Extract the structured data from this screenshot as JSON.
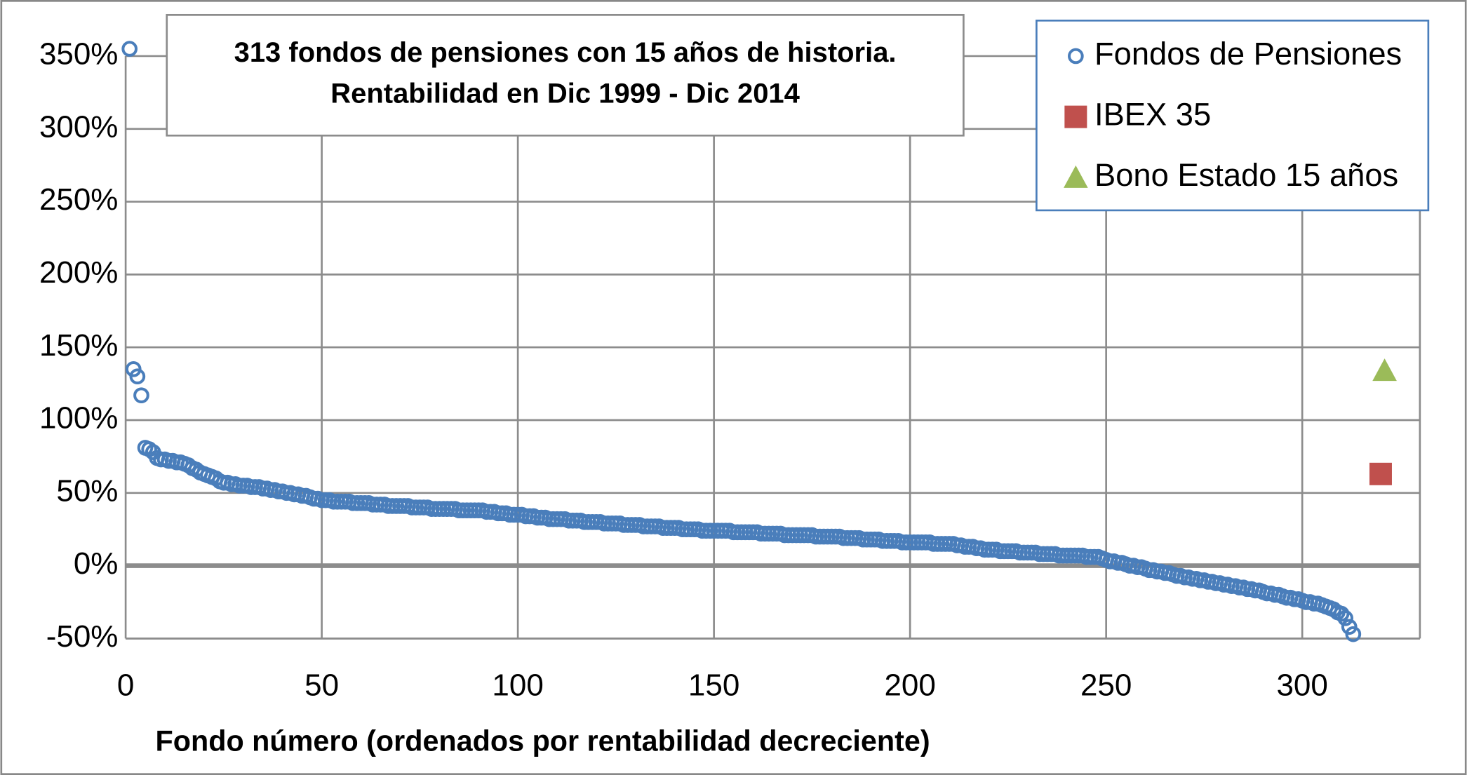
{
  "chart_data": {
    "type": "scatter",
    "title": [
      "313 fondos de pensiones con 15 años de historia.",
      "Rentabilidad en Dic 1999 - Dic 2014"
    ],
    "x_label": "Fondo número  (ordenados por rentabilidad decreciente)",
    "xlim": [
      0,
      330
    ],
    "xticks": [
      0,
      50,
      100,
      150,
      200,
      250,
      300
    ],
    "ylim": [
      -50,
      350
    ],
    "yticks": [
      {
        "value": -50,
        "label": "-50%"
      },
      {
        "value": 0,
        "label": "0%"
      },
      {
        "value": 50,
        "label": "50%"
      },
      {
        "value": 100,
        "label": "100%"
      },
      {
        "value": 150,
        "label": "150%"
      },
      {
        "value": 200,
        "label": "200%"
      },
      {
        "value": 250,
        "label": "250%"
      },
      {
        "value": 300,
        "label": "300%"
      },
      {
        "value": 350,
        "label": "350%"
      }
    ],
    "grid": true,
    "legend": "top-right",
    "series": [
      {
        "name": "Fondos de Pensiones",
        "color": "#4a7ebb",
        "marker": "circle",
        "x": [
          1,
          2,
          3,
          4,
          5,
          6,
          7,
          8,
          9,
          10,
          11,
          12,
          13,
          14,
          15,
          16,
          17,
          18,
          19,
          20,
          21,
          22,
          23,
          24,
          25,
          26,
          27,
          28,
          29,
          30,
          31,
          32,
          33,
          34,
          35,
          36,
          37,
          38,
          39,
          40,
          41,
          42,
          43,
          44,
          45,
          46,
          47,
          48,
          49,
          50,
          51,
          52,
          53,
          54,
          55,
          56,
          57,
          58,
          59,
          60,
          61,
          62,
          63,
          64,
          65,
          66,
          67,
          68,
          69,
          70,
          71,
          72,
          73,
          74,
          75,
          76,
          77,
          78,
          79,
          80,
          81,
          82,
          83,
          84,
          85,
          86,
          87,
          88,
          89,
          90,
          91,
          92,
          93,
          94,
          95,
          96,
          97,
          98,
          99,
          100,
          101,
          102,
          103,
          104,
          105,
          106,
          107,
          108,
          109,
          110,
          111,
          112,
          113,
          114,
          115,
          116,
          117,
          118,
          119,
          120,
          121,
          122,
          123,
          124,
          125,
          126,
          127,
          128,
          129,
          130,
          131,
          132,
          133,
          134,
          135,
          136,
          137,
          138,
          139,
          140,
          141,
          142,
          143,
          144,
          145,
          146,
          147,
          148,
          149,
          150,
          151,
          152,
          153,
          154,
          155,
          156,
          157,
          158,
          159,
          160,
          161,
          162,
          163,
          164,
          165,
          166,
          167,
          168,
          169,
          170,
          171,
          172,
          173,
          174,
          175,
          176,
          177,
          178,
          179,
          180,
          181,
          182,
          183,
          184,
          185,
          186,
          187,
          188,
          189,
          190,
          191,
          192,
          193,
          194,
          195,
          196,
          197,
          198,
          199,
          200,
          201,
          202,
          203,
          204,
          205,
          206,
          207,
          208,
          209,
          210,
          211,
          212,
          213,
          214,
          215,
          216,
          217,
          218,
          219,
          220,
          221,
          222,
          223,
          224,
          225,
          226,
          227,
          228,
          229,
          230,
          231,
          232,
          233,
          234,
          235,
          236,
          237,
          238,
          239,
          240,
          241,
          242,
          243,
          244,
          245,
          246,
          247,
          248,
          249,
          250,
          251,
          252,
          253,
          254,
          255,
          256,
          257,
          258,
          259,
          260,
          261,
          262,
          263,
          264,
          265,
          266,
          267,
          268,
          269,
          270,
          271,
          272,
          273,
          274,
          275,
          276,
          277,
          278,
          279,
          280,
          281,
          282,
          283,
          284,
          285,
          286,
          287,
          288,
          289,
          290,
          291,
          292,
          293,
          294,
          295,
          296,
          297,
          298,
          299,
          300,
          301,
          302,
          303,
          304,
          305,
          306,
          307,
          308,
          309,
          310,
          311,
          312,
          313
        ],
        "values": [
          355,
          135,
          130,
          117,
          81,
          80,
          78,
          74,
          73,
          73,
          72,
          72,
          71,
          71,
          70,
          69,
          67,
          66,
          64,
          63,
          62,
          61,
          60,
          58,
          57,
          57,
          56,
          56,
          55,
          55,
          55,
          54,
          54,
          54,
          53,
          53,
          52,
          52,
          51,
          51,
          50,
          50,
          49,
          49,
          48,
          48,
          47,
          46,
          46,
          45,
          45,
          45,
          44,
          44,
          44,
          44,
          44,
          43,
          43,
          43,
          43,
          43,
          42,
          42,
          42,
          42,
          41,
          41,
          41,
          41,
          41,
          41,
          40,
          40,
          40,
          40,
          40,
          39,
          39,
          39,
          39,
          39,
          39,
          39,
          38,
          38,
          38,
          38,
          38,
          38,
          38,
          37,
          37,
          37,
          36,
          36,
          36,
          35,
          35,
          35,
          35,
          34,
          34,
          34,
          33,
          33,
          33,
          32,
          32,
          32,
          32,
          32,
          31,
          31,
          31,
          31,
          30,
          30,
          30,
          30,
          30,
          29,
          29,
          29,
          29,
          29,
          28,
          28,
          28,
          28,
          28,
          27,
          27,
          27,
          27,
          27,
          26,
          26,
          26,
          26,
          26,
          25,
          25,
          25,
          25,
          25,
          24,
          24,
          24,
          24,
          24,
          24,
          24,
          24,
          23,
          23,
          23,
          23,
          23,
          23,
          23,
          22,
          22,
          22,
          22,
          22,
          22,
          21,
          21,
          21,
          21,
          21,
          21,
          21,
          21,
          20,
          20,
          20,
          20,
          20,
          20,
          20,
          19,
          19,
          19,
          19,
          19,
          18,
          18,
          18,
          18,
          18,
          17,
          17,
          17,
          17,
          17,
          16,
          16,
          16,
          16,
          16,
          16,
          16,
          16,
          15,
          15,
          15,
          15,
          15,
          15,
          14,
          14,
          13,
          13,
          13,
          12,
          12,
          11,
          11,
          11,
          11,
          10,
          10,
          10,
          10,
          10,
          9,
          9,
          9,
          9,
          9,
          8,
          8,
          8,
          8,
          8,
          7,
          7,
          7,
          7,
          7,
          7,
          7,
          6,
          6,
          6,
          6,
          5,
          4,
          3,
          3,
          2,
          2,
          1,
          0,
          0,
          -1,
          -1,
          -2,
          -3,
          -3,
          -4,
          -4,
          -5,
          -5,
          -6,
          -7,
          -7,
          -8,
          -8,
          -9,
          -9,
          -10,
          -10,
          -11,
          -11,
          -12,
          -12,
          -13,
          -13,
          -14,
          -14,
          -15,
          -15,
          -16,
          -16,
          -17,
          -17,
          -18,
          -19,
          -19,
          -20,
          -20,
          -21,
          -22,
          -22,
          -23,
          -23,
          -24,
          -25,
          -25,
          -26,
          -26,
          -27,
          -28,
          -29,
          -30,
          -32,
          -33,
          -36,
          -42,
          -47
        ]
      },
      {
        "name": "IBEX 35",
        "color": "#c0504d",
        "marker": "square",
        "x": [
          320
        ],
        "values": [
          63
        ]
      },
      {
        "name": "Bono Estado 15 años",
        "color": "#9bbb59",
        "marker": "triangle",
        "x": [
          321
        ],
        "values": [
          134
        ]
      }
    ]
  }
}
